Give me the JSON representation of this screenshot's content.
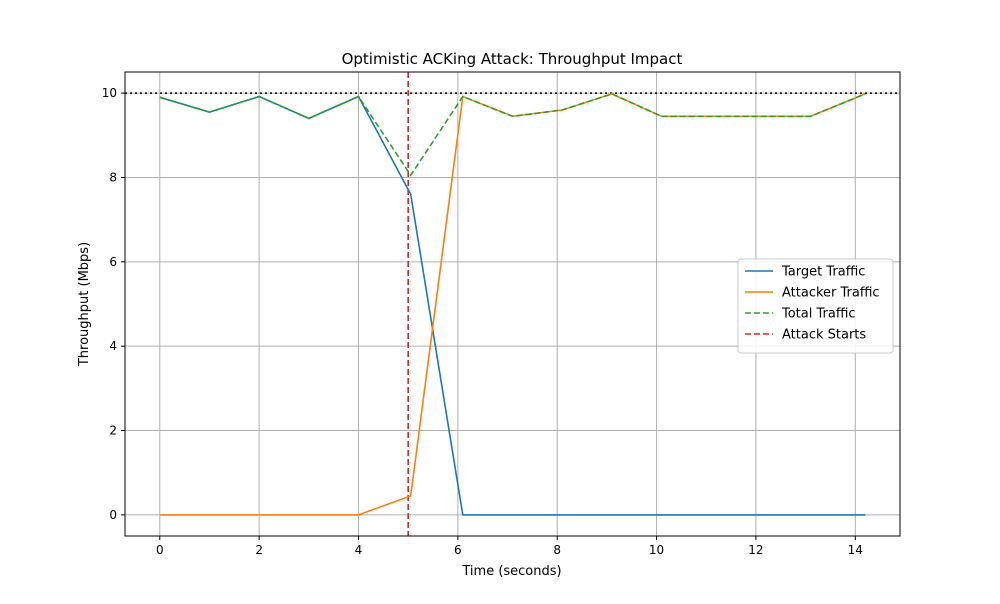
{
  "chart_data": {
    "type": "line",
    "title": "Optimistic ACKing Attack: Throughput Impact",
    "xlabel": "Time (seconds)",
    "ylabel": "Throughput (Mbps)",
    "xlim": [
      -0.7,
      14.9
    ],
    "ylim": [
      -0.5,
      10.5
    ],
    "xticks": [
      0,
      2,
      4,
      6,
      8,
      10,
      12,
      14
    ],
    "yticks": [
      0,
      2,
      4,
      6,
      8,
      10
    ],
    "grid": true,
    "legend_position": "center-right",
    "series": [
      {
        "name": "Target Traffic",
        "color": "#1f77b4",
        "style": "solid",
        "x": [
          0,
          1,
          2,
          3,
          4,
          5.05,
          6.1,
          7.1,
          8.1,
          9.1,
          10.1,
          11.1,
          12.1,
          13.1,
          14.2
        ],
        "y": [
          9.9,
          9.55,
          9.92,
          9.4,
          9.92,
          7.6,
          0,
          0,
          0,
          0,
          0,
          0,
          0,
          0,
          0
        ]
      },
      {
        "name": "Attacker Traffic",
        "color": "#ff7f0e",
        "style": "solid",
        "x": [
          0,
          1,
          2,
          3,
          4,
          5.05,
          6.1,
          7.1,
          8.1,
          9.1,
          10.1,
          11.1,
          12.1,
          13.1,
          14.2
        ],
        "y": [
          0,
          0,
          0,
          0,
          0,
          0.45,
          9.92,
          9.45,
          9.6,
          9.98,
          9.45,
          9.45,
          9.45,
          9.45,
          9.98
        ]
      },
      {
        "name": "Total Traffic",
        "color": "#2ca02c",
        "style": "dashed",
        "x": [
          0,
          1,
          2,
          3,
          4,
          5.05,
          6.1,
          7.1,
          8.1,
          9.1,
          10.1,
          11.1,
          12.1,
          13.1,
          14.2
        ],
        "y": [
          9.9,
          9.55,
          9.92,
          9.4,
          9.92,
          8.05,
          9.92,
          9.45,
          9.6,
          9.98,
          9.45,
          9.45,
          9.45,
          9.45,
          9.98
        ]
      }
    ],
    "reference_lines": [
      {
        "name": "Attack Starts",
        "orientation": "vertical",
        "value": 5,
        "color": "#d62728",
        "style": "dashed"
      },
      {
        "name": "",
        "orientation": "horizontal",
        "value": 10,
        "color": "#000000",
        "style": "dotted"
      }
    ]
  }
}
